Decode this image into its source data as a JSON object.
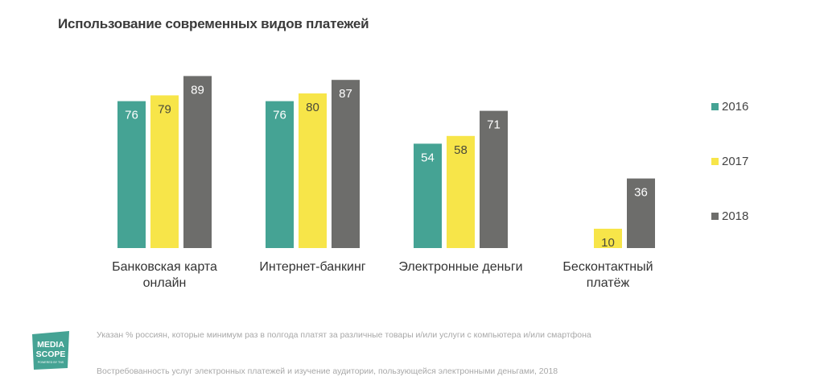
{
  "title": "Использование современных видов платежей",
  "chart_data": {
    "type": "bar",
    "categories": [
      [
        "Банковская карта",
        "онлайн"
      ],
      [
        "Интернет-банкинг"
      ],
      [
        "Электронные деньги"
      ],
      [
        "Бесконтактный",
        "платёж"
      ]
    ],
    "series": [
      {
        "name": "2016",
        "color": "#45a394",
        "values": [
          76,
          76,
          54,
          null
        ]
      },
      {
        "name": "2017",
        "color": "#f7e549",
        "values": [
          79,
          80,
          58,
          10
        ]
      },
      {
        "name": "2018",
        "color": "#6d6d6b",
        "values": [
          89,
          87,
          71,
          36
        ]
      }
    ],
    "ylim": [
      0,
      100
    ],
    "grid": false,
    "legend_position": "right"
  },
  "footnotes": {
    "note1": "Указан % россиян, которые минимум раз в полгода платят за различные товары и/или услуги с компьютера и/или смартфона",
    "note2": "Востребованность услуг электронных платежей и изучение аудитории, пользующейся электронными деньгами, 2018"
  },
  "logo": {
    "line1": "MEDIA",
    "line2": "SCOPE",
    "tagline": "POWERED BY TNS",
    "color": "#45a394"
  }
}
